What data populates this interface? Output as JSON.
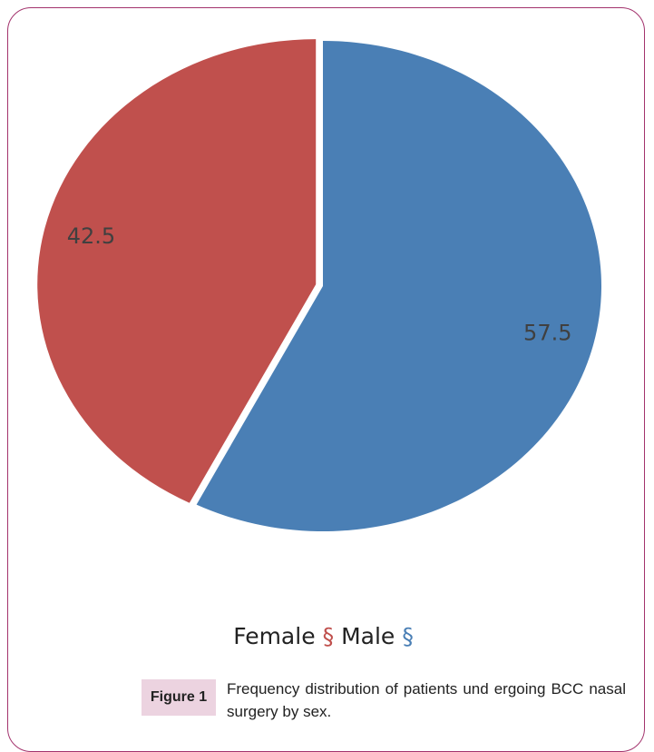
{
  "chart_data": {
    "type": "pie",
    "categories": [
      "Female",
      "Male"
    ],
    "values": [
      42.5,
      57.5
    ],
    "colors": [
      "#c0504d",
      "#4a7fb5"
    ],
    "legend_marker": "§"
  },
  "caption": {
    "label": "Figure 1",
    "text": "Frequency distribution of patients und ergoing BCC nasal surgery by sex."
  }
}
